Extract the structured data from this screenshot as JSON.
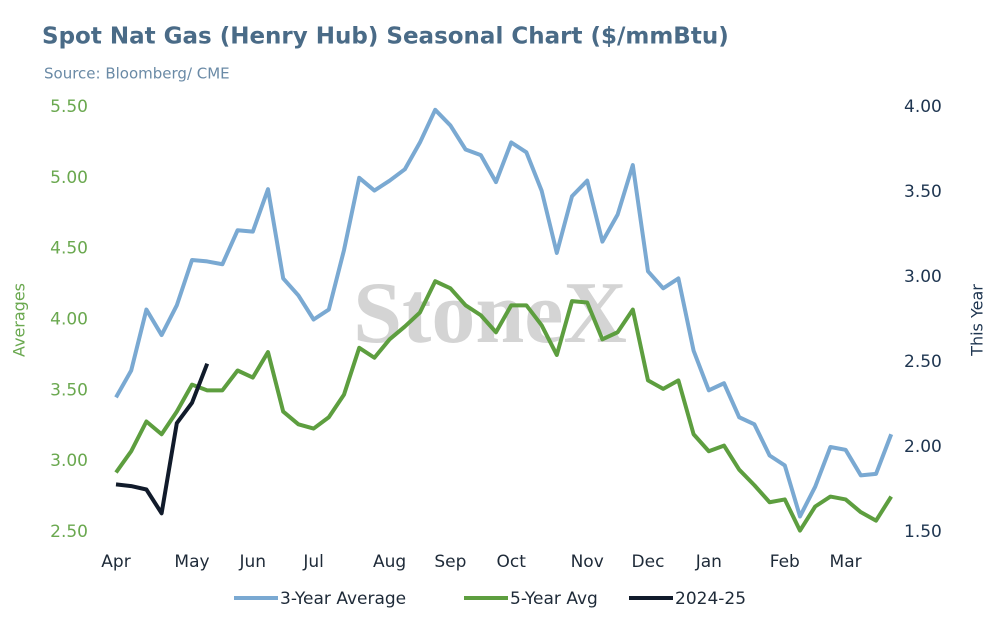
{
  "chart_data": {
    "type": "line",
    "title": "Spot Nat Gas (Henry Hub) Seasonal Chart ($/mmBtu)",
    "subtitle": "Source: Bloomberg/ CME",
    "watermark": "StoneX",
    "ylabel": "Averages",
    "y2label": "This Year",
    "categories": [
      "Apr",
      null,
      null,
      null,
      null,
      "May",
      null,
      null,
      null,
      "Jun",
      null,
      null,
      null,
      "Jul",
      null,
      null,
      null,
      null,
      "Aug",
      null,
      null,
      null,
      "Sep",
      null,
      null,
      null,
      "Oct",
      null,
      null,
      null,
      null,
      "Nov",
      null,
      null,
      null,
      "Dec",
      null,
      null,
      null,
      "Jan",
      null,
      null,
      null,
      null,
      "Feb",
      null,
      null,
      null,
      "Mar",
      null,
      null,
      null
    ],
    "ylim": [
      2.5,
      5.5
    ],
    "yticks": [
      {
        "value": 2.5,
        "label": "2.50"
      },
      {
        "value": 3,
        "label": "3.00"
      },
      {
        "value": 3.5,
        "label": "3.50"
      },
      {
        "value": 4,
        "label": "4.00"
      },
      {
        "value": 4.5,
        "label": "4.50"
      },
      {
        "value": 5,
        "label": "5.00"
      },
      {
        "value": 5.5,
        "label": "5.50"
      }
    ],
    "y2lim": [
      1.5,
      4
    ],
    "y2ticks": [
      {
        "value": 1.5,
        "label": "1.50"
      },
      {
        "value": 2,
        "label": "2.00"
      },
      {
        "value": 2.5,
        "label": "2.50"
      },
      {
        "value": 3,
        "label": "3.00"
      },
      {
        "value": 3.5,
        "label": "3.50"
      },
      {
        "value": 4,
        "label": "4.00"
      }
    ],
    "grid": false,
    "legend": "bottom",
    "series": [
      {
        "name": "3-Year Average",
        "color": "#7aa9d2",
        "values": [
          3.45,
          3.64,
          4.07,
          3.89,
          4.1,
          4.42,
          4.41,
          4.39,
          4.63,
          4.62,
          4.92,
          4.29,
          4.17,
          4.0,
          4.07,
          4.49,
          5.0,
          4.91,
          4.98,
          5.06,
          5.25,
          5.48,
          5.37,
          5.2,
          5.16,
          4.97,
          5.25,
          5.18,
          4.91,
          4.47,
          4.87,
          4.98,
          4.55,
          4.74,
          5.09,
          4.34,
          4.22,
          4.29,
          3.78,
          3.5,
          3.55,
          3.31,
          3.26,
          3.04,
          2.97,
          2.61,
          2.82,
          3.1,
          3.08,
          2.9,
          2.91,
          3.19
        ]
      },
      {
        "name": "5-Year Avg",
        "color": "#5d9e3f",
        "values": [
          2.92,
          3.07,
          3.28,
          3.19,
          3.35,
          3.54,
          3.5,
          3.5,
          3.64,
          3.59,
          3.77,
          3.35,
          3.26,
          3.23,
          3.31,
          3.47,
          3.8,
          3.73,
          3.86,
          3.95,
          4.05,
          4.27,
          4.22,
          4.1,
          4.03,
          3.91,
          4.1,
          4.1,
          3.96,
          3.75,
          4.13,
          4.12,
          3.86,
          3.91,
          4.07,
          3.57,
          3.51,
          3.57,
          3.19,
          3.07,
          3.11,
          2.94,
          2.83,
          2.71,
          2.73,
          2.51,
          2.68,
          2.75,
          2.73,
          2.64,
          2.58,
          2.75
        ]
      },
      {
        "name": "2024-25",
        "color": "#111b2b",
        "axis": "y2",
        "values": [
          1.78,
          1.77,
          1.75,
          1.61,
          2.14,
          2.26,
          2.49,
          null,
          null,
          null,
          null,
          null,
          null,
          null,
          null,
          null,
          null,
          null,
          null,
          null,
          null,
          null,
          null,
          null,
          null,
          null,
          null,
          null,
          null,
          null,
          null,
          null,
          null,
          null,
          null,
          null,
          null,
          null,
          null,
          null,
          null,
          null,
          null,
          null,
          null,
          null,
          null,
          null,
          null,
          null,
          null,
          null
        ]
      }
    ]
  }
}
